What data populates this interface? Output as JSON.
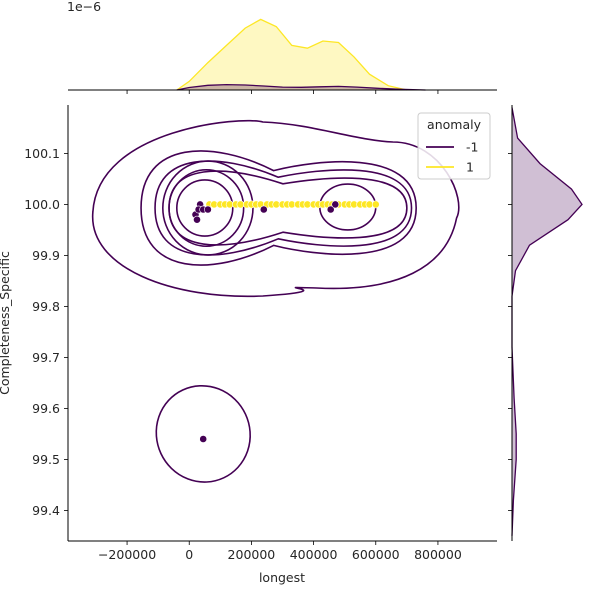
{
  "chart_data": {
    "type": "scatter",
    "subtype": "jointplot-kde",
    "xlabel": "longest",
    "ylabel": "Completeness_Specific",
    "xlim": [
      -390000,
      990000
    ],
    "ylim": [
      99.34,
      100.195
    ],
    "x_ticks": [
      -200000,
      0,
      200000,
      400000,
      600000,
      800000
    ],
    "x_tick_labels": [
      "−200000",
      "0",
      "200000",
      "400000",
      "600000",
      "800000"
    ],
    "y_ticks": [
      99.4,
      99.5,
      99.6,
      99.7,
      99.8,
      99.9,
      100.0,
      100.1
    ],
    "y_tick_labels": [
      "99.4",
      "99.5",
      "99.6",
      "99.7",
      "99.8",
      "99.9",
      "100.0",
      "100.1"
    ],
    "top_marginal_offset_label": "1e−6",
    "legend": {
      "title": "anomaly",
      "placement": "upper-right",
      "entries": [
        {
          "label": "-1",
          "color": "#440154"
        },
        {
          "label": "1",
          "color": "#fde725"
        }
      ]
    },
    "series": [
      {
        "name": "-1",
        "color": "#440154",
        "points": [
          {
            "x": 35000,
            "y": 100.0
          },
          {
            "x": 20000,
            "y": 99.98
          },
          {
            "x": 30000,
            "y": 99.99
          },
          {
            "x": 45000,
            "y": 99.99
          },
          {
            "x": 60000,
            "y": 99.99
          },
          {
            "x": 25000,
            "y": 99.97
          },
          {
            "x": 240000,
            "y": 99.99
          },
          {
            "x": 455000,
            "y": 99.99
          },
          {
            "x": 470000,
            "y": 100.0
          },
          {
            "x": 45000,
            "y": 99.54
          }
        ]
      },
      {
        "name": "1",
        "color": "#fde725",
        "points": [
          {
            "x": 65000,
            "y": 100.0
          },
          {
            "x": 80000,
            "y": 100.0
          },
          {
            "x": 100000,
            "y": 100.0
          },
          {
            "x": 115000,
            "y": 100.0
          },
          {
            "x": 130000,
            "y": 100.0
          },
          {
            "x": 150000,
            "y": 100.0
          },
          {
            "x": 165000,
            "y": 100.0
          },
          {
            "x": 185000,
            "y": 100.0
          },
          {
            "x": 200000,
            "y": 100.0
          },
          {
            "x": 215000,
            "y": 100.0
          },
          {
            "x": 230000,
            "y": 100.0
          },
          {
            "x": 250000,
            "y": 100.0
          },
          {
            "x": 265000,
            "y": 100.0
          },
          {
            "x": 280000,
            "y": 100.0
          },
          {
            "x": 300000,
            "y": 100.0
          },
          {
            "x": 315000,
            "y": 100.0
          },
          {
            "x": 330000,
            "y": 100.0
          },
          {
            "x": 350000,
            "y": 100.0
          },
          {
            "x": 365000,
            "y": 100.0
          },
          {
            "x": 380000,
            "y": 100.0
          },
          {
            "x": 400000,
            "y": 100.0
          },
          {
            "x": 415000,
            "y": 100.0
          },
          {
            "x": 430000,
            "y": 100.0
          },
          {
            "x": 445000,
            "y": 100.0
          },
          {
            "x": 460000,
            "y": 100.0
          },
          {
            "x": 480000,
            "y": 100.0
          },
          {
            "x": 500000,
            "y": 100.0
          },
          {
            "x": 515000,
            "y": 100.0
          },
          {
            "x": 530000,
            "y": 100.0
          },
          {
            "x": 550000,
            "y": 100.0
          },
          {
            "x": 565000,
            "y": 100.0
          },
          {
            "x": 580000,
            "y": 100.0
          },
          {
            "x": 600000,
            "y": 100.0
          }
        ]
      }
    ],
    "kde_contours": {
      "color": "#440154",
      "levels": [
        {
          "type": "ellipse",
          "cx": 50000,
          "cy": 99.993,
          "rx": 90000,
          "ry": 0.055
        },
        {
          "type": "ellipse",
          "cx": 55000,
          "cy": 99.993,
          "rx": 120000,
          "ry": 0.075
        },
        {
          "type": "ellipse",
          "cx": 60000,
          "cy": 99.993,
          "rx": 145000,
          "ry": 0.092
        },
        {
          "type": "ellipse",
          "cx": 510000,
          "cy": 99.995,
          "rx": 90000,
          "ry": 0.045
        },
        {
          "type": "bimodal",
          "x0": -65000,
          "x1": 700000,
          "scale": 0.6
        },
        {
          "type": "bimodal",
          "x0": -110000,
          "x1": 715000,
          "scale": 0.8
        },
        {
          "type": "bimodal",
          "x0": -155000,
          "x1": 730000,
          "scale": 1.0
        },
        {
          "type": "outer",
          "x0": -310000,
          "x1": 860000
        },
        {
          "type": "ellipse",
          "cx": 45000,
          "cy": 99.55,
          "rx": 150000,
          "ry": 0.095,
          "rotate": -25
        }
      ]
    },
    "marginal_x": {
      "series": [
        {
          "name": "1",
          "color": "#fde725",
          "x": [
            -40000,
            0,
            60000,
            120000,
            180000,
            230000,
            280000,
            330000,
            380000,
            430000,
            480000,
            530000,
            580000,
            640000,
            700000
          ],
          "density": [
            0.0,
            0.12,
            0.38,
            0.62,
            0.86,
            0.98,
            0.88,
            0.62,
            0.58,
            0.68,
            0.66,
            0.46,
            0.22,
            0.06,
            0.0
          ]
        },
        {
          "name": "-1",
          "color": "#440154",
          "x": [
            -40000,
            0,
            60000,
            120000,
            180000,
            240000,
            300000,
            360000,
            420000,
            480000,
            540000,
            600000,
            680000,
            760000
          ],
          "density": [
            0.0,
            0.035,
            0.065,
            0.075,
            0.07,
            0.055,
            0.04,
            0.038,
            0.045,
            0.05,
            0.04,
            0.025,
            0.01,
            0.0
          ]
        }
      ]
    },
    "marginal_y": {
      "series": [
        {
          "name": "-1",
          "color": "#440154",
          "y": [
            99.35,
            99.42,
            99.5,
            99.55,
            99.62,
            99.72,
            99.82,
            99.87,
            99.92,
            99.97,
            100.0,
            100.03,
            100.08,
            100.13,
            100.19
          ],
          "density": [
            0.0,
            0.02,
            0.06,
            0.06,
            0.03,
            0.0,
            0.0,
            0.05,
            0.25,
            0.8,
            1.0,
            0.85,
            0.4,
            0.08,
            0.0
          ]
        }
      ]
    }
  }
}
